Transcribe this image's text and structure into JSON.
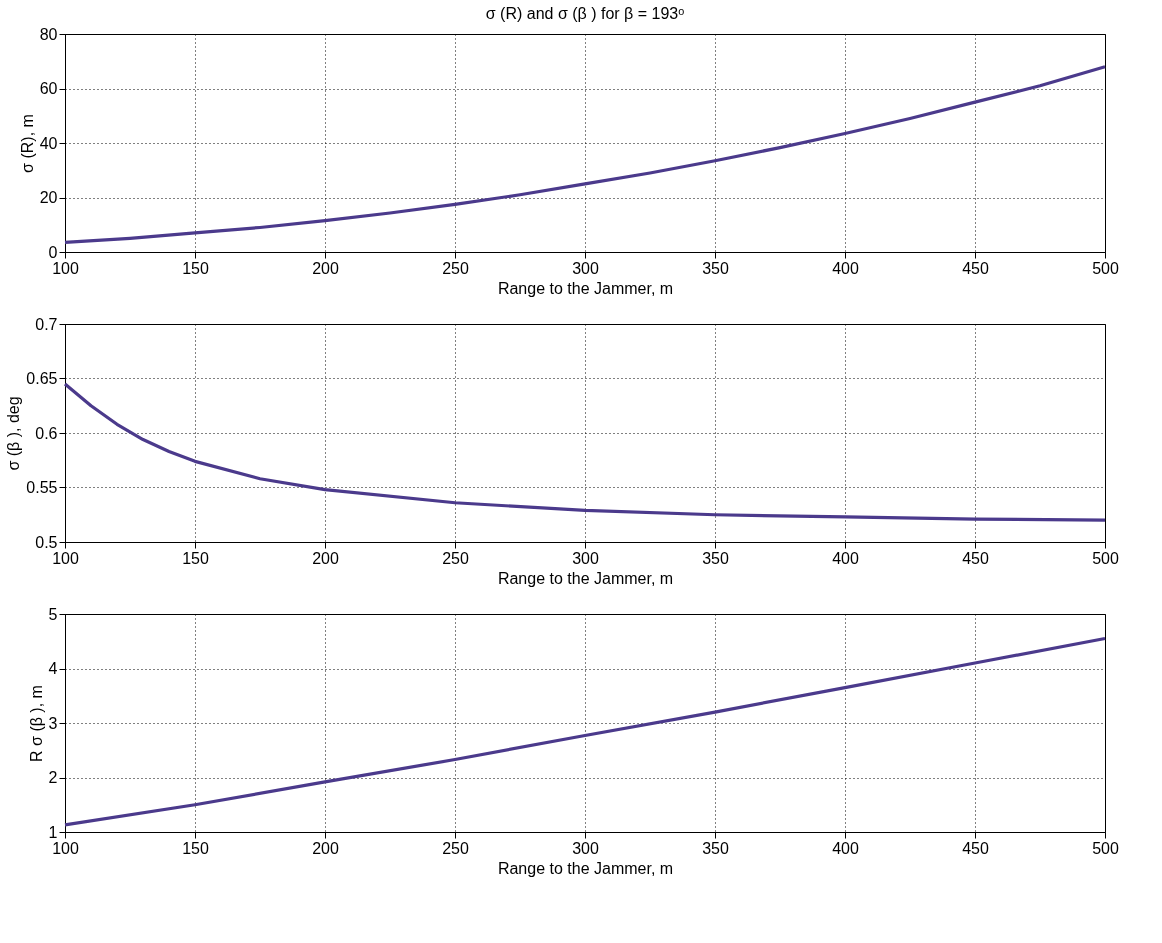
{
  "chart_data": [
    {
      "type": "line",
      "title": "σ (R) and σ (β ) for β = 193ᵒ",
      "xlabel": "Range to the Jammer, m",
      "ylabel": "σ (R), m",
      "grid": true,
      "line_style": "solid",
      "xlim": [
        100,
        500
      ],
      "xticks": [
        100,
        150,
        200,
        250,
        300,
        350,
        400,
        450,
        500
      ],
      "ylim": [
        0,
        80
      ],
      "yticks": [
        0,
        20,
        40,
        60,
        80
      ],
      "x": [
        100,
        125,
        150,
        175,
        200,
        225,
        250,
        275,
        300,
        325,
        350,
        375,
        400,
        425,
        450,
        475,
        500
      ],
      "series": [
        {
          "color": "#4b3a8c",
          "values": [
            3.5,
            5,
            7,
            9,
            11.5,
            14.3,
            17.5,
            21,
            25,
            29,
            33.5,
            38.3,
            43.5,
            49,
            55,
            61,
            68
          ]
        }
      ]
    },
    {
      "type": "line",
      "xlabel": "Range to the Jammer, m",
      "ylabel": "σ (β ), deg",
      "grid": true,
      "line_style": "solid",
      "xlim": [
        100,
        500
      ],
      "xticks": [
        100,
        150,
        200,
        250,
        300,
        350,
        400,
        450,
        500
      ],
      "ylim": [
        0.5,
        0.7
      ],
      "yticks": [
        0.5,
        0.55,
        0.6,
        0.65,
        0.7
      ],
      "x": [
        100,
        110,
        120,
        130,
        140,
        150,
        175,
        200,
        250,
        300,
        350,
        400,
        450,
        500
      ],
      "series": [
        {
          "color": "#4b3a8c",
          "values": [
            0.645,
            0.625,
            0.608,
            0.594,
            0.583,
            0.574,
            0.558,
            0.548,
            0.536,
            0.529,
            0.525,
            0.523,
            0.521,
            0.52
          ]
        }
      ]
    },
    {
      "type": "line",
      "xlabel": "Range to the Jammer, m",
      "ylabel": "R σ (β ), m",
      "grid": true,
      "line_style": "solid",
      "xlim": [
        100,
        500
      ],
      "xticks": [
        100,
        150,
        200,
        250,
        300,
        350,
        400,
        450,
        500
      ],
      "ylim": [
        1,
        5
      ],
      "yticks": [
        1,
        2,
        3,
        4,
        5
      ],
      "x": [
        100,
        150,
        200,
        250,
        300,
        350,
        400,
        450,
        500
      ],
      "series": [
        {
          "color": "#4b3a8c",
          "values": [
            1.13,
            1.5,
            1.92,
            2.33,
            2.77,
            3.2,
            3.65,
            4.1,
            4.55
          ]
        }
      ]
    }
  ]
}
